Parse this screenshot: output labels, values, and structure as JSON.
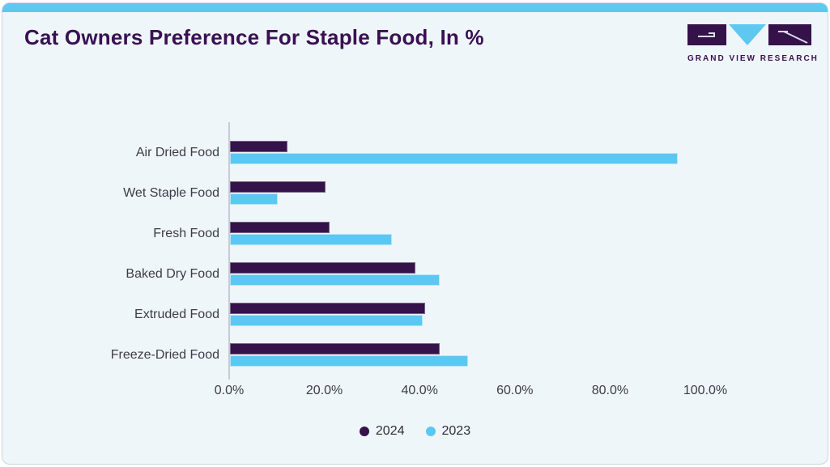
{
  "header": {
    "title": "Cat Owners Preference For Staple Food, In %",
    "logo_text": "GRAND VIEW RESEARCH"
  },
  "colors": {
    "accent_blue": "#5ec8f0",
    "brand_purple": "#3a1053",
    "bar_2024": "#351249",
    "bar_2023": "#5bc8f3",
    "card_background": "#eff6fa",
    "axis_line": "#c7cbd4",
    "label_text": "#3d3b47"
  },
  "chart_data": {
    "type": "bar",
    "orientation": "horizontal",
    "title": "Cat Owners Preference For Staple Food, In %",
    "categories": [
      "Air Dried Food",
      "Wet Staple Food",
      "Fresh Food",
      "Baked Dry Food",
      "Extruded Food",
      "Freeze-Dried Food"
    ],
    "series": [
      {
        "name": "2024",
        "color": "#351249",
        "values": [
          12,
          20,
          21,
          39,
          41,
          44
        ]
      },
      {
        "name": "2023",
        "color": "#5bc8f3",
        "values": [
          94,
          10,
          34,
          44,
          40.5,
          50
        ]
      }
    ],
    "xlim": [
      0,
      100
    ],
    "x_ticks": [
      "0.0%",
      "20.0%",
      "40.0%",
      "60.0%",
      "80.0%",
      "100.0%"
    ],
    "xlabel": "",
    "ylabel": "",
    "grid": false,
    "legend_position": "bottom"
  }
}
